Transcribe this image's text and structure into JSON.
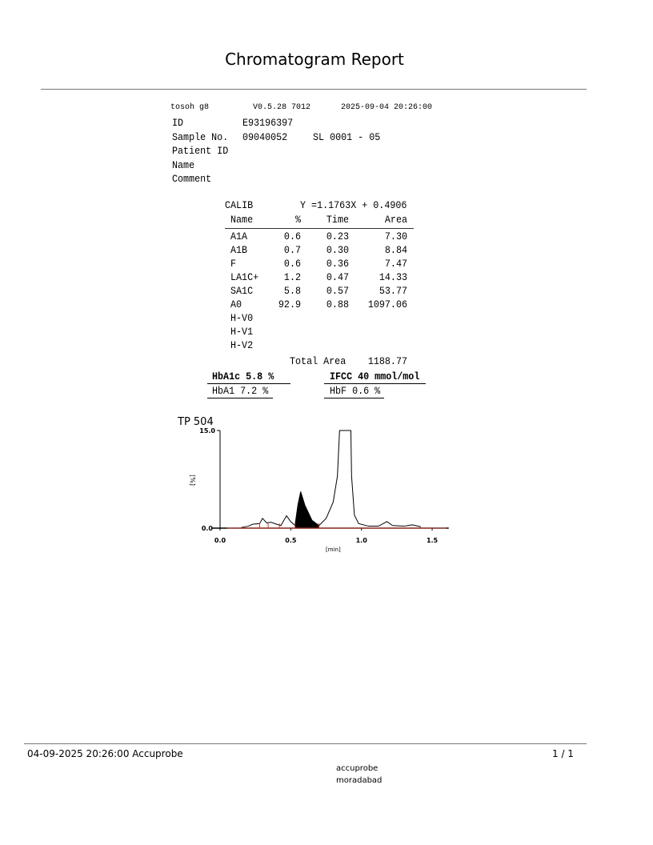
{
  "title": "Chromatogram Report",
  "header": {
    "instrument": "tosoh g8",
    "version": "V0.5.28 7012",
    "datetime": "2025-09-04 20:26:00"
  },
  "fields": [
    {
      "label": "ID",
      "value": "E93196397"
    },
    {
      "label": "Sample No.",
      "value": "09040052",
      "extra": "SL 0001 - 05"
    },
    {
      "label": "Patient ID",
      "value": ""
    },
    {
      "label": "Name",
      "value": ""
    },
    {
      "label": "Comment",
      "value": ""
    }
  ],
  "calib": {
    "label": "CALIB",
    "equation": "Y =1.1763X + 0.4906"
  },
  "table": {
    "columns": [
      "Name",
      "%",
      "Time",
      "Area"
    ],
    "rows": [
      [
        "A1A",
        "0.6",
        "0.23",
        "7.30"
      ],
      [
        "A1B",
        "0.7",
        "0.30",
        "8.84"
      ],
      [
        "F",
        "0.6",
        "0.36",
        "7.47"
      ],
      [
        "LA1C+",
        "1.2",
        "0.47",
        "14.33"
      ],
      [
        "SA1C",
        "5.8",
        "0.57",
        "53.77"
      ],
      [
        "A0",
        "92.9",
        "0.88",
        "1097.06"
      ],
      [
        "H-V0",
        "",
        "",
        ""
      ],
      [
        "H-V1",
        "",
        "",
        ""
      ],
      [
        "H-V2",
        "",
        "",
        ""
      ]
    ],
    "total_label": "Total Area",
    "total_value": "1188.77"
  },
  "results": {
    "hba1c": "HbA1c 5.8 %",
    "ifcc": "IFCC 40 mmol/mol",
    "hba1": "HbA1 7.2 %",
    "hbf": "HbF 0.6 %"
  },
  "chart_data": {
    "type": "line",
    "title": "TP  504",
    "xlabel": "[min]",
    "ylabel": "[%]",
    "xlim": [
      0.0,
      1.6
    ],
    "ylim": [
      0.0,
      15.0
    ],
    "xticks": [
      "0.0",
      "0.5",
      "1.0",
      "1.5"
    ],
    "yticks": [
      "0.0",
      "15.0"
    ],
    "trace_color": "#000000",
    "baseline_color": "#c0392b",
    "filled_peak": {
      "name": "SA1C",
      "range": [
        0.53,
        0.7
      ]
    },
    "peak_boundaries": [
      0.28,
      0.34,
      0.42,
      0.53,
      0.7
    ],
    "x": [
      0.15,
      0.2,
      0.23,
      0.28,
      0.3,
      0.33,
      0.36,
      0.4,
      0.43,
      0.47,
      0.5,
      0.53,
      0.55,
      0.57,
      0.6,
      0.65,
      0.7,
      0.75,
      0.8,
      0.83,
      0.845,
      0.925,
      0.93,
      0.95,
      0.98,
      1.05,
      1.12,
      1.18,
      1.22,
      1.3,
      1.36,
      1.42
    ],
    "y": [
      0.1,
      0.3,
      0.6,
      0.7,
      1.5,
      0.8,
      0.9,
      0.6,
      0.4,
      1.9,
      1.0,
      0.4,
      3.5,
      5.6,
      3.5,
      1.2,
      0.4,
      1.5,
      4.0,
      8.0,
      15.0,
      15.0,
      8.0,
      2.0,
      0.7,
      0.3,
      0.3,
      1.0,
      0.4,
      0.3,
      0.5,
      0.2
    ]
  },
  "footer": {
    "left": "04-09-2025 20:26:00  Accuprobe",
    "page": "1 / 1",
    "line1": "accuprobe",
    "line2": "moradabad"
  }
}
